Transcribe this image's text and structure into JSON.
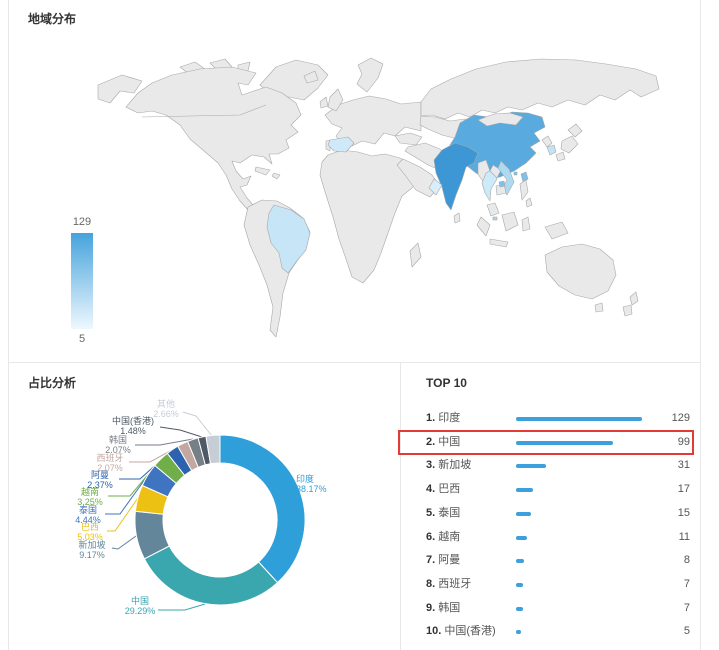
{
  "map_section": {
    "title": "地域分布",
    "legend": {
      "max": "129",
      "min": "5",
      "color_top": "#45a3dd",
      "color_bottom": "#eef8fe"
    }
  },
  "pie_section": {
    "title": "占比分析"
  },
  "top_section": {
    "title": "TOP 10",
    "bar_color": "#3ba0dc",
    "highlight_color": "#e53935"
  },
  "chart_data": [
    {
      "type": "heatmap",
      "subtype": "world-choropleth-map",
      "title": "地域分布",
      "legend_range": [
        5,
        129
      ],
      "other_country_fill": "#e9e9e9",
      "countries": [
        {
          "name": "印度",
          "value": 129,
          "color": "#3d97d5"
        },
        {
          "name": "中国",
          "value": 99,
          "color": "#58aadf"
        },
        {
          "name": "新加坡",
          "value": 31,
          "color": "#a8d4ee"
        },
        {
          "name": "巴西",
          "value": 17,
          "color": "#c6e5f6"
        },
        {
          "name": "泰国",
          "value": 15,
          "color": "#cdeaf8"
        },
        {
          "name": "越南",
          "value": 11,
          "color": "#aedaf1"
        },
        {
          "name": "阿曼",
          "value": 8,
          "color": "#d8eefa"
        },
        {
          "name": "西班牙",
          "value": 7,
          "color": "#cfe9f8"
        },
        {
          "name": "韩国",
          "value": 7,
          "color": "#c4e3f5"
        },
        {
          "name": "中国(香港)",
          "value": 5,
          "color": "#7fc0e8"
        }
      ]
    },
    {
      "type": "pie",
      "subtype": "donut",
      "title": "占比分析",
      "items": [
        {
          "name": "印度",
          "pct": 38.17,
          "label": "38.17%",
          "color": "#2e9fd9"
        },
        {
          "name": "中国",
          "pct": 29.29,
          "label": "29.29%",
          "color": "#3aa7ae"
        },
        {
          "name": "新加坡",
          "pct": 9.17,
          "label": "9.17%",
          "color": "#64869b"
        },
        {
          "name": "巴西",
          "pct": 5.03,
          "label": "5.03%",
          "color": "#edc113"
        },
        {
          "name": "泰国",
          "pct": 4.44,
          "label": "4.44%",
          "color": "#3e74c0"
        },
        {
          "name": "越南",
          "pct": 3.25,
          "label": "3.25%",
          "color": "#6fae49"
        },
        {
          "name": "阿曼",
          "pct": 2.37,
          "label": "2.37%",
          "color": "#2d63ae"
        },
        {
          "name": "西班牙",
          "pct": 2.07,
          "label": "2.07%",
          "color": "#c3a8a2"
        },
        {
          "name": "韩国",
          "pct": 2.07,
          "label": "2.07%",
          "color": "#767e86"
        },
        {
          "name": "中国(香港)",
          "pct": 1.48,
          "label": "1.48%",
          "color": "#4d5a66"
        },
        {
          "name": "其他",
          "pct": 2.66,
          "label": "2.66%",
          "color": "#c6cdd5"
        }
      ]
    },
    {
      "type": "bar",
      "subtype": "top10-ranking",
      "title": "TOP 10",
      "max": 129,
      "highlighted_rank": 2,
      "rows": [
        {
          "rank": "1.",
          "name": "印度",
          "value": 129
        },
        {
          "rank": "2.",
          "name": "中国",
          "value": 99
        },
        {
          "rank": "3.",
          "name": "新加坡",
          "value": 31
        },
        {
          "rank": "4.",
          "name": "巴西",
          "value": 17
        },
        {
          "rank": "5.",
          "name": "泰国",
          "value": 15
        },
        {
          "rank": "6.",
          "name": "越南",
          "value": 11
        },
        {
          "rank": "7.",
          "name": "阿曼",
          "value": 8
        },
        {
          "rank": "8.",
          "name": "西班牙",
          "value": 7
        },
        {
          "rank": "9.",
          "name": "韩国",
          "value": 7
        },
        {
          "rank": "10.",
          "name": "中国(香港)",
          "value": 5
        }
      ]
    }
  ]
}
